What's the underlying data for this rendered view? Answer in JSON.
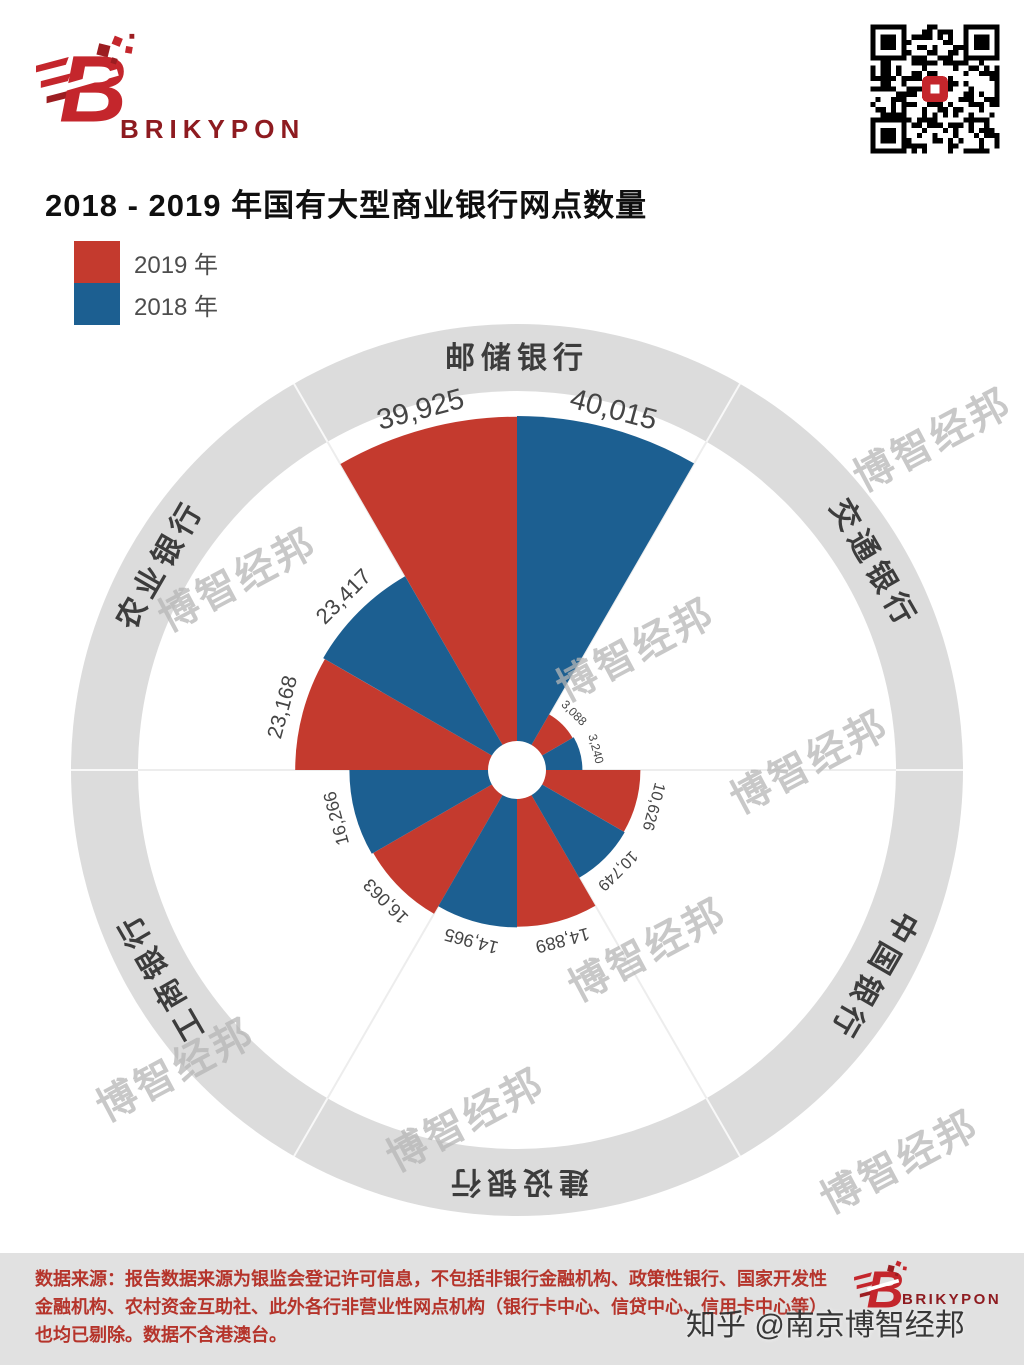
{
  "brand": {
    "name": "BRIKYPON",
    "initial": "B"
  },
  "title": "2018 - 2019 年国有大型商业银行网点数量",
  "legend": [
    {
      "label": "2019 年",
      "color": "#c43a2e"
    },
    {
      "label": "2018 年",
      "color": "#1c5f91"
    }
  ],
  "chart_data": {
    "type": "rose",
    "title": "2018 - 2019 年国有大型商业银行网点数量",
    "categories": [
      "邮储银行",
      "交通银行",
      "中国银行",
      "建设银行",
      "工商银行",
      "农业银行"
    ],
    "series": [
      {
        "name": "2019 年",
        "color": "#c43a2e",
        "values": [
          39925,
          3088,
          10626,
          14889,
          16063,
          23168
        ]
      },
      {
        "name": "2018 年",
        "color": "#1c5f91",
        "values": [
          40015,
          3240,
          10749,
          14965,
          16266,
          23417
        ]
      }
    ],
    "max_value": 40015,
    "category_start": "top",
    "direction": "clockwise",
    "legend_position": "top-left",
    "grid": false,
    "ring_color": "#dcdcdc",
    "value_label_color": "#454545",
    "category_label_color": "#3c3c3c"
  },
  "watermark": {
    "text": "博智经邦"
  },
  "footer": {
    "source_text": "数据来源：报告数据来源为银监会登记许可信息，不包括非银行金融机构、政策性银行、国家开发性金融机构、农村资金互助社、此外各行非营业性网点机构（银行卡中心、信贷中心、信用卡中心等）也均已剔除。数据不含港澳台。",
    "zhihu_watermark": "知乎 @南京博智经邦"
  }
}
